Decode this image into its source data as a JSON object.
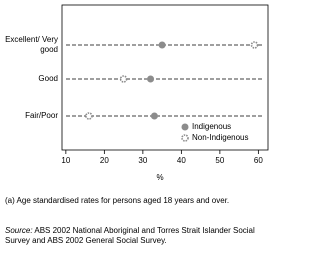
{
  "chart_data": {
    "type": "dot",
    "categories": [
      "Excellent/ Very good",
      "Good",
      "Fair/Poor"
    ],
    "series": [
      {
        "name": "Indigenous",
        "color": "#8c8c8c",
        "values": [
          35,
          32,
          33
        ]
      },
      {
        "name": "Non-Indigenous",
        "color": "#8c8c8c",
        "values": [
          59,
          25,
          16
        ]
      }
    ],
    "xlabel": "%",
    "xlim": [
      9,
      62.5
    ],
    "xticks": [
      10,
      20,
      30,
      40,
      50,
      60
    ],
    "legend": "lower right"
  },
  "notes": {
    "footnote": "(a) Age standardised rates for persons aged 18 years and over.",
    "source_label": "Source:",
    "source": "ABS 2002 National Aboriginal and Torres Strait Islander Social Survey and ABS 2002 General Social Survey."
  }
}
